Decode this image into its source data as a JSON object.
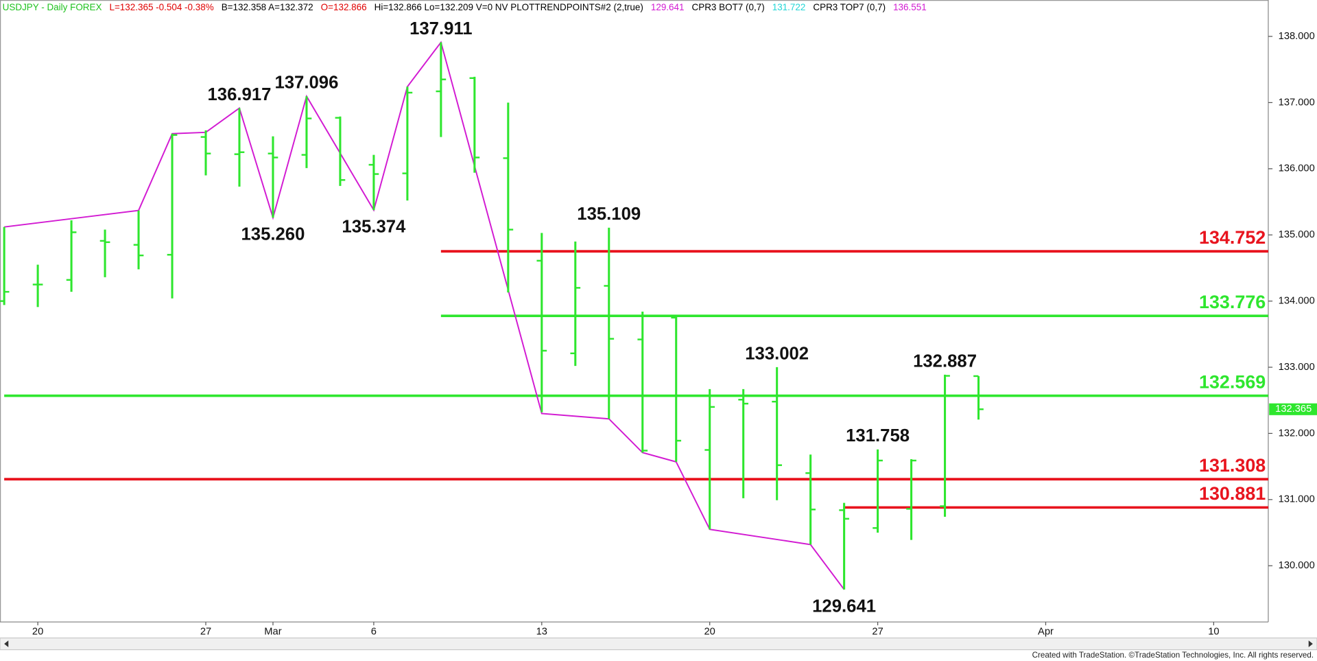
{
  "chart_data": {
    "type": "ohlc",
    "header": [
      {
        "text": "USDJPY - Daily  FOREX",
        "color": "#1fc21f"
      },
      {
        "text": "L=132.365  -0.504  -0.38%",
        "color": "#e00000"
      },
      {
        "text": "B=132.358  A=132.372",
        "color": "#000000"
      },
      {
        "text": "O=132.866",
        "color": "#e00000"
      },
      {
        "text": "Hi=132.866  Lo=132.209  V=0  NV  PLOTTRENDPOINTS#2 (2,true)",
        "color": "#000000"
      },
      {
        "text": "129.641",
        "color": "#d21ad2"
      },
      {
        "text": "CPR3 BOT7 (0,7)",
        "color": "#000000"
      },
      {
        "text": "131.722",
        "color": "#22d6d6"
      },
      {
        "text": "CPR3 TOP7 (0,7)",
        "color": "#000000"
      },
      {
        "text": "136.551",
        "color": "#d21ad2"
      }
    ],
    "footer": "Created with TradeStation. ©TradeStation Technologies, Inc. All rights reserved.",
    "categories": [
      null,
      "20",
      null,
      null,
      null,
      null,
      "27",
      null,
      "Mar",
      null,
      null,
      "6",
      null,
      null,
      null,
      null,
      "13",
      null,
      null,
      null,
      null,
      "20",
      null,
      null,
      null,
      null,
      "27",
      null,
      null,
      null,
      null,
      "Apr",
      null,
      null,
      null,
      null,
      "10",
      null
    ],
    "color": "#2ee62e",
    "open": [
      134.0,
      134.25,
      134.32,
      134.91,
      134.85,
      134.7,
      136.48,
      136.22,
      136.23,
      136.21,
      136.77,
      136.06,
      135.93,
      137.17,
      137.37,
      136.16,
      134.61,
      133.21,
      134.23,
      133.42,
      133.75,
      131.75,
      132.51,
      132.48,
      131.4,
      130.84,
      130.57,
      130.86,
      130.9,
      132.866,
      null,
      null,
      null,
      null,
      null,
      null,
      null,
      null
    ],
    "high": [
      135.12,
      134.55,
      135.22,
      135.08,
      135.37,
      136.53,
      136.58,
      136.917,
      136.49,
      137.096,
      136.79,
      136.21,
      137.24,
      137.911,
      137.39,
      137.0,
      135.03,
      134.9,
      135.109,
      133.84,
      133.77,
      132.67,
      132.67,
      133.002,
      131.68,
      130.95,
      131.758,
      131.61,
      132.887,
      132.866,
      null,
      null,
      null,
      null,
      null,
      null,
      null,
      null
    ],
    "low": [
      133.94,
      133.91,
      134.14,
      134.36,
      134.48,
      134.04,
      135.9,
      135.73,
      135.26,
      136.01,
      135.74,
      135.374,
      135.52,
      136.48,
      135.94,
      134.13,
      132.32,
      133.02,
      132.22,
      131.71,
      131.57,
      130.55,
      131.02,
      130.99,
      130.32,
      129.641,
      130.5,
      130.39,
      130.74,
      132.209,
      null,
      null,
      null,
      null,
      null,
      null,
      null,
      null
    ],
    "close": [
      134.14,
      134.25,
      135.04,
      134.89,
      134.69,
      136.51,
      136.23,
      136.25,
      136.17,
      136.76,
      135.83,
      135.92,
      137.15,
      137.35,
      136.17,
      135.08,
      133.25,
      134.2,
      133.43,
      131.74,
      131.89,
      132.4,
      132.45,
      131.52,
      130.85,
      130.71,
      131.59,
      131.59,
      132.87,
      132.365,
      null,
      null,
      null,
      null,
      null,
      null,
      null,
      null
    ],
    "high_labels": [
      null,
      null,
      null,
      null,
      null,
      null,
      null,
      "136.917",
      null,
      "137.096",
      null,
      null,
      null,
      "137.911",
      null,
      null,
      null,
      null,
      "135.109",
      null,
      null,
      null,
      null,
      "133.002",
      null,
      null,
      "131.758",
      null,
      "132.887",
      null,
      null,
      null,
      null,
      null,
      null,
      null,
      null,
      null
    ],
    "low_labels": [
      null,
      null,
      null,
      null,
      null,
      null,
      null,
      null,
      "135.260",
      null,
      null,
      "135.374",
      null,
      null,
      null,
      null,
      null,
      null,
      null,
      null,
      null,
      null,
      null,
      null,
      null,
      "129.641",
      null,
      null,
      null,
      null,
      null,
      null,
      null,
      null,
      null,
      null,
      null,
      null
    ],
    "trend_color": "#d21ad2",
    "trend_x": [
      0,
      4,
      5,
      6,
      7,
      8,
      9,
      11,
      12,
      13,
      16,
      18,
      19,
      20,
      21,
      24,
      25
    ],
    "trend_y": [
      135.12,
      135.37,
      136.53,
      136.55,
      136.917,
      135.26,
      137.096,
      135.374,
      137.24,
      137.911,
      132.3,
      132.22,
      131.71,
      131.57,
      130.55,
      130.32,
      129.641
    ],
    "levels": [
      {
        "value": 134.752,
        "color": "#e8141e",
        "from": 13
      },
      {
        "value": 133.776,
        "color": "#2ee62e",
        "from": 13
      },
      {
        "value": 132.569,
        "color": "#2ee62e",
        "from": 0
      },
      {
        "value": 131.308,
        "color": "#e8141e",
        "from": 0
      },
      {
        "value": 130.881,
        "color": "#e8141e",
        "from": 25
      }
    ],
    "ylim": [
      129.15,
      138.55
    ],
    "yticks": [
      {
        "value": 130,
        "label": "130.000"
      },
      {
        "value": 131,
        "label": "131.000"
      },
      {
        "value": 132,
        "label": "132.000"
      },
      {
        "value": 133,
        "label": "133.000"
      },
      {
        "value": 134,
        "label": "134.000"
      },
      {
        "value": 135,
        "label": "135.000"
      },
      {
        "value": 136,
        "label": "136.000"
      },
      {
        "value": 137,
        "label": "137.000"
      },
      {
        "value": 138,
        "label": "138.000"
      }
    ]
  }
}
